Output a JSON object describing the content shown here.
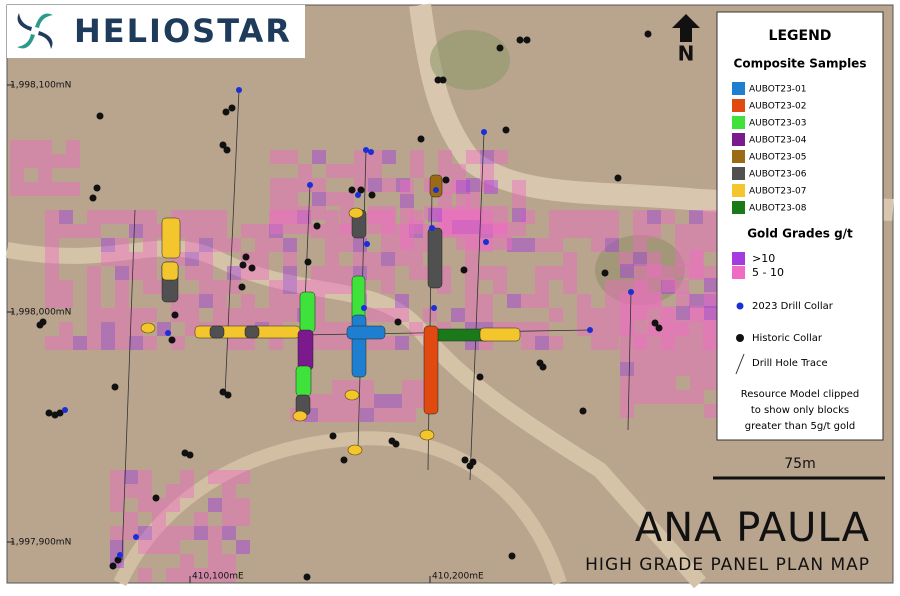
{
  "logo": {
    "name": "HELIOSTAR"
  },
  "north": "N",
  "grid_labels": {
    "northings": [
      "1,998,100mN",
      "1,998,000mN",
      "1,997,900mN"
    ],
    "eastings": [
      "410,100mE",
      "410,200mE"
    ]
  },
  "legend": {
    "title": "LEGEND",
    "samples_title": "Composite Samples",
    "samples": [
      {
        "name": "AUBOT23-01",
        "color": "#1e7fd0"
      },
      {
        "name": "AUBOT23-02",
        "color": "#e04a10"
      },
      {
        "name": "AUBOT23-03",
        "color": "#3ee23a"
      },
      {
        "name": "AUBOT23-04",
        "color": "#7a1a8c"
      },
      {
        "name": "AUBOT23-05",
        "color": "#9a6a14"
      },
      {
        "name": "AUBOT23-06",
        "color": "#505050"
      },
      {
        "name": "AUBOT23-07",
        "color": "#f2c62c"
      },
      {
        "name": "AUBOT23-08",
        "color": "#1a7a1a"
      }
    ],
    "grades_title": "Gold Grades g/t",
    "grades": [
      {
        "label": ">10",
        "color": "#a43be0"
      },
      {
        "label": "5  - 10",
        "color": "#f06bc4"
      }
    ],
    "symbols": [
      "2023 Drill Collar",
      "Historic Collar",
      "Drill Hole Trace"
    ],
    "note": [
      "Resource Model clipped",
      "to show only blocks",
      "greater than 5g/t gold"
    ]
  },
  "scale": "75m",
  "title": "ANA PAULA",
  "subtitle": "HIGH GRADE PANEL PLAN MAP"
}
